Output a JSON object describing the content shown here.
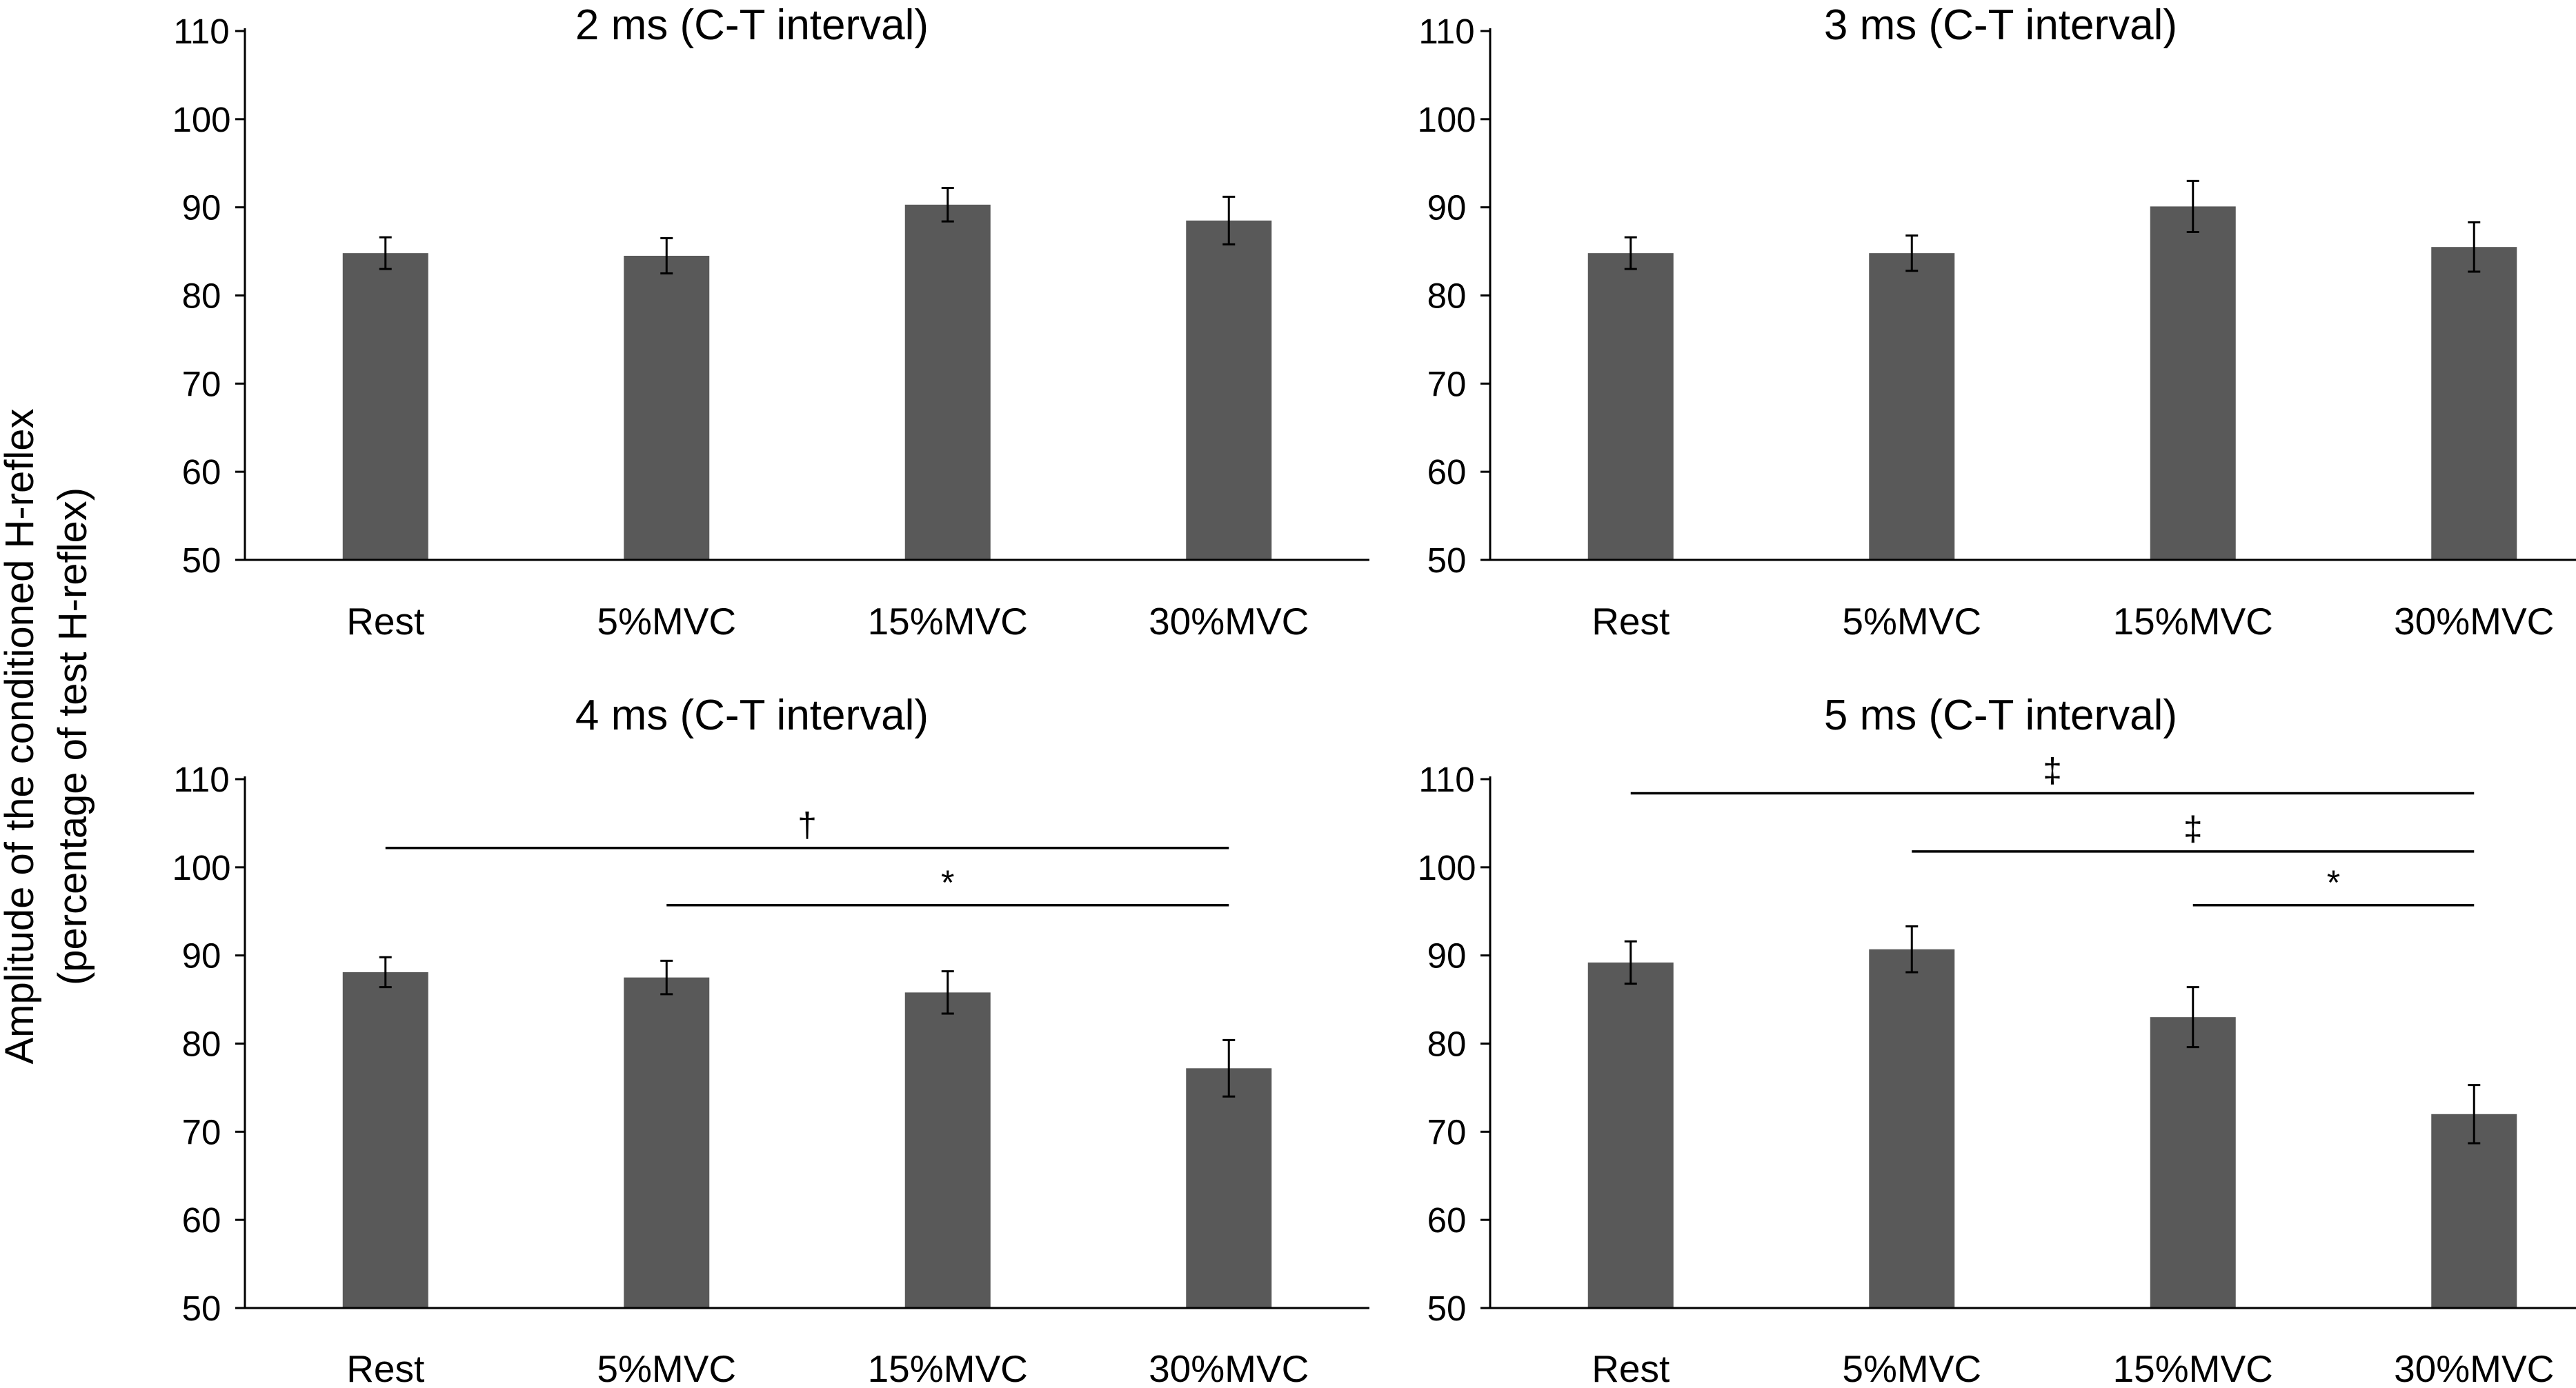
{
  "figure": {
    "ylabel_line1": "Amplitude of the conditioned  H-reflex",
    "ylabel_line2": "(percentage of  test H-reflex)"
  },
  "colors": {
    "bar": "#595959",
    "axis": "#000000"
  },
  "chart_data": [
    {
      "type": "bar",
      "title": "2 ms (C-T interval)",
      "categories": [
        "Rest",
        "5%MVC",
        "15%MVC",
        "30%MVC"
      ],
      "values": [
        84.8,
        84.5,
        90.3,
        88.5
      ],
      "errors": [
        1.8,
        2.0,
        1.9,
        2.7
      ],
      "ylim": [
        50,
        110
      ],
      "yticks": [
        "50",
        "60",
        "70",
        "80",
        "90",
        "100",
        "110"
      ],
      "significance": []
    },
    {
      "type": "bar",
      "title": "3 ms (C-T interval)",
      "categories": [
        "Rest",
        "5%MVC",
        "15%MVC",
        "30%MVC"
      ],
      "values": [
        84.8,
        84.8,
        90.1,
        85.5
      ],
      "errors": [
        1.8,
        2.0,
        2.9,
        2.8
      ],
      "ylim": [
        50,
        110
      ],
      "yticks": [
        "50",
        "60",
        "70",
        "80",
        "90",
        "100",
        "110"
      ],
      "significance": []
    },
    {
      "type": "bar",
      "title": "4 ms (C-T interval)",
      "categories": [
        "Rest",
        "5%MVC",
        "15%MVC",
        "30%MVC"
      ],
      "values": [
        88.1,
        87.5,
        85.8,
        77.2
      ],
      "errors": [
        1.7,
        1.9,
        2.4,
        3.2
      ],
      "ylim": [
        50,
        110
      ],
      "yticks": [
        "50",
        "60",
        "70",
        "80",
        "90",
        "100",
        "110"
      ],
      "significance": [
        {
          "from": 0,
          "to": 3,
          "y": 102.2,
          "symbol": "†"
        },
        {
          "from": 1,
          "to": 3,
          "y": 95.7,
          "symbol": "*"
        }
      ]
    },
    {
      "type": "bar",
      "title": "5 ms (C-T interval)",
      "categories": [
        "Rest",
        "5%MVC",
        "15%MVC",
        "30%MVC"
      ],
      "values": [
        89.2,
        90.7,
        83.0,
        72.0
      ],
      "errors": [
        2.4,
        2.6,
        3.4,
        3.3
      ],
      "ylim": [
        50,
        110
      ],
      "yticks": [
        "50",
        "60",
        "70",
        "80",
        "90",
        "100",
        "110"
      ],
      "significance": [
        {
          "from": 0,
          "to": 3,
          "y": 108.4,
          "symbol": "‡"
        },
        {
          "from": 1,
          "to": 3,
          "y": 101.8,
          "symbol": "‡"
        },
        {
          "from": 2,
          "to": 3,
          "y": 95.7,
          "symbol": "*"
        }
      ]
    }
  ]
}
